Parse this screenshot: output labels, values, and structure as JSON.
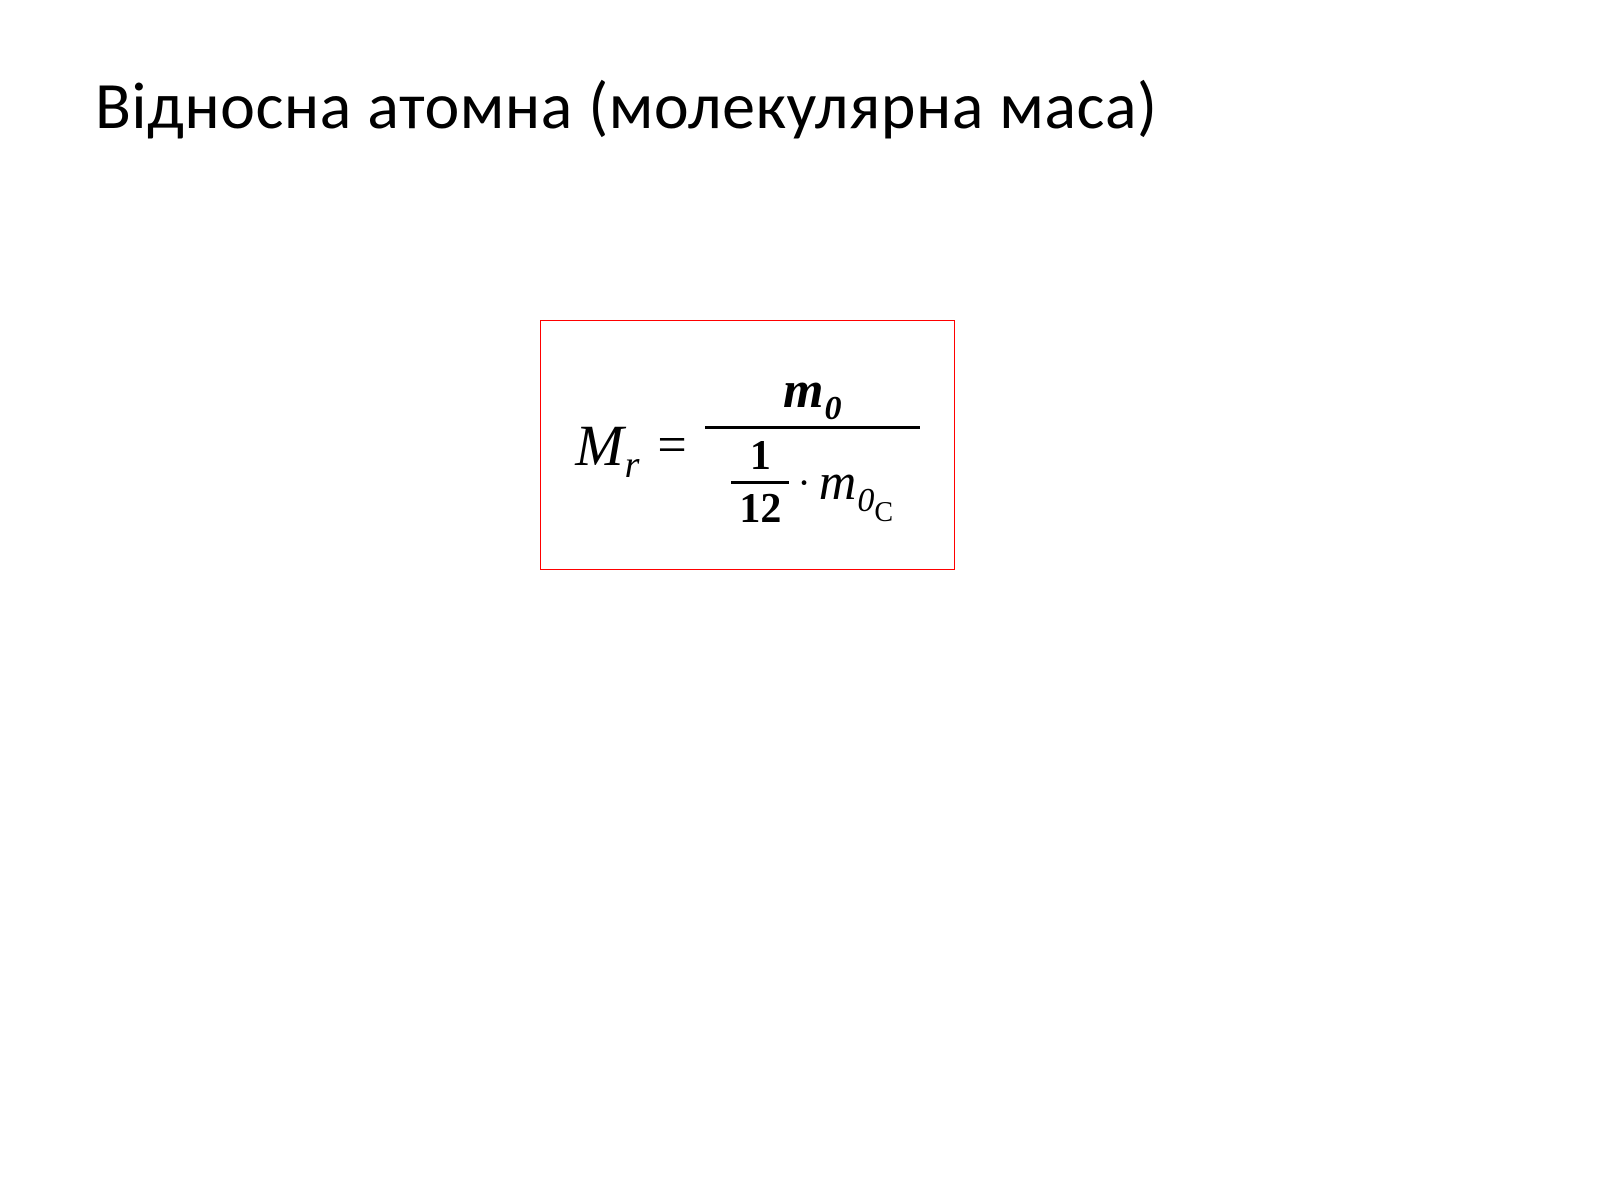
{
  "slide": {
    "title": "Відносна атомна (молекулярна маса)",
    "title_fontsize": 66,
    "title_color": "#000000",
    "background_color": "#ffffff",
    "formula": {
      "border_color": "#ff0000",
      "text_color": "#000000",
      "lhs_symbol": "M",
      "lhs_subscript": "r",
      "equals": "=",
      "numerator_symbol": "m",
      "numerator_subscript": "0",
      "denominator_fraction_top": "1",
      "denominator_fraction_bottom": "12",
      "denominator_dot": "·",
      "denominator_symbol": "m",
      "denominator_subscript_1": "0",
      "denominator_subscript_2": "C"
    }
  }
}
